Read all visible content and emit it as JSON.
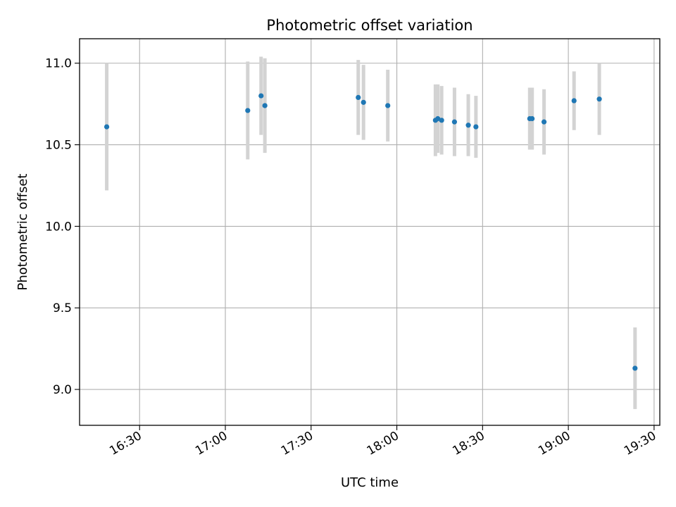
{
  "chart_data": {
    "type": "scatter",
    "title": "Photometric offset variation",
    "xlabel": "UTC time",
    "ylabel": "Photometric offset",
    "x_type": "time",
    "xlim": [
      "16:09",
      "19:32"
    ],
    "ylim": [
      8.78,
      11.15
    ],
    "x_ticks": [
      "16:30",
      "17:00",
      "17:30",
      "18:00",
      "18:30",
      "19:00",
      "19:30"
    ],
    "y_ticks": [
      9.0,
      9.5,
      10.0,
      10.5,
      11.0
    ],
    "y_tick_labels": [
      "9.0",
      "9.5",
      "10.0",
      "10.5",
      "11.0"
    ],
    "grid": true,
    "marker_color": "#1f77b4",
    "errorbar_color": "#d3d3d3",
    "series": [
      {
        "points": [
          {
            "x": "16:18:30",
            "y": 10.61,
            "err": 0.39
          },
          {
            "x": "17:07:50",
            "y": 10.71,
            "err": 0.3
          },
          {
            "x": "17:12:30",
            "y": 10.8,
            "err": 0.24
          },
          {
            "x": "17:13:50",
            "y": 10.74,
            "err": 0.29
          },
          {
            "x": "17:46:30",
            "y": 10.79,
            "err": 0.23
          },
          {
            "x": "17:48:20",
            "y": 10.76,
            "err": 0.23
          },
          {
            "x": "17:56:50",
            "y": 10.74,
            "err": 0.22
          },
          {
            "x": "18:13:30",
            "y": 10.65,
            "err": 0.22
          },
          {
            "x": "18:14:20",
            "y": 10.66,
            "err": 0.21
          },
          {
            "x": "18:15:40",
            "y": 10.65,
            "err": 0.21
          },
          {
            "x": "18:20:10",
            "y": 10.64,
            "err": 0.21
          },
          {
            "x": "18:25:00",
            "y": 10.62,
            "err": 0.19
          },
          {
            "x": "18:27:40",
            "y": 10.61,
            "err": 0.19
          },
          {
            "x": "18:46:30",
            "y": 10.66,
            "err": 0.19
          },
          {
            "x": "18:47:20",
            "y": 10.66,
            "err": 0.19
          },
          {
            "x": "18:51:30",
            "y": 10.64,
            "err": 0.2
          },
          {
            "x": "19:02:00",
            "y": 10.77,
            "err": 0.18
          },
          {
            "x": "19:10:50",
            "y": 10.78,
            "err": 0.22
          },
          {
            "x": "19:23:20",
            "y": 9.13,
            "err": 0.25
          }
        ]
      }
    ]
  }
}
